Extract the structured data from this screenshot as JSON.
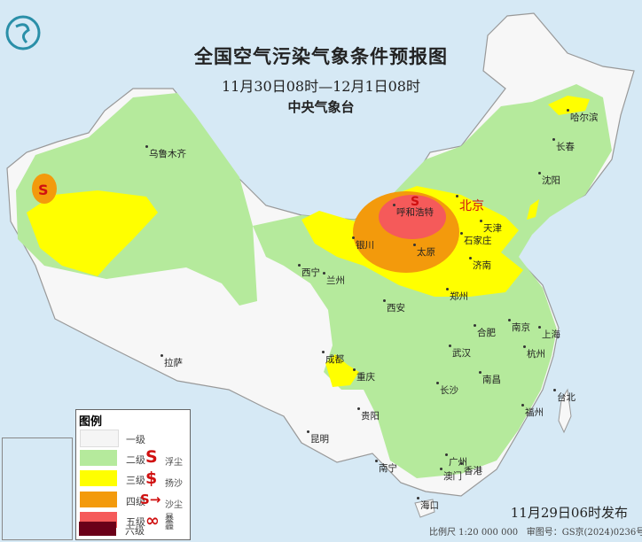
{
  "map": {
    "title": "全国空气污染气象条件预报图",
    "period": "11月30日08时—12月1日08时",
    "agency": "中央气象台",
    "issued": "11月29日06时发布",
    "scale": "比例尺 1:20 000 000",
    "approval": "审图号：GS京(2024)0236号",
    "colors": {
      "level1": "#f5f5f5",
      "level2": "#b5ea9c",
      "level3": "#ffff00",
      "level4": "#f39a0c",
      "level5": "#f55a5a",
      "level6": "#6b0019",
      "symbol": "#d01010",
      "sea": "#d6e9f5"
    },
    "cities": [
      "乌鲁木齐",
      "哈尔滨",
      "长春",
      "沈阳",
      "北京",
      "天津",
      "呼和浩特",
      "石家庄",
      "太原",
      "银川",
      "济南",
      "西宁",
      "兰州",
      "郑州",
      "西安",
      "合肥",
      "南京",
      "上海",
      "武汉",
      "杭州",
      "成都",
      "重庆",
      "拉萨",
      "南昌",
      "长沙",
      "福州",
      "台北",
      "贵阳",
      "昆明",
      "南宁",
      "广州",
      "澳门",
      "香港",
      "海口"
    ],
    "dust_markers": [
      {
        "type": "floating-dust",
        "near": "新疆西部"
      },
      {
        "type": "floating-dust",
        "near": "呼和浩特"
      }
    ]
  },
  "legend": {
    "title": "图例",
    "levels": [
      "一级",
      "二级",
      "三级",
      "四级",
      "五级",
      "六级"
    ],
    "symbols": [
      {
        "icon": "floating-dust-icon",
        "glyph": "S",
        "label": "浮尘"
      },
      {
        "icon": "blowing-sand-icon",
        "glyph": "$",
        "label": "扬沙"
      },
      {
        "icon": "sandstorm-icon",
        "glyph": "S→",
        "label": "沙尘暴"
      },
      {
        "icon": "haze-icon",
        "glyph": "∞",
        "label": "霾"
      }
    ]
  }
}
